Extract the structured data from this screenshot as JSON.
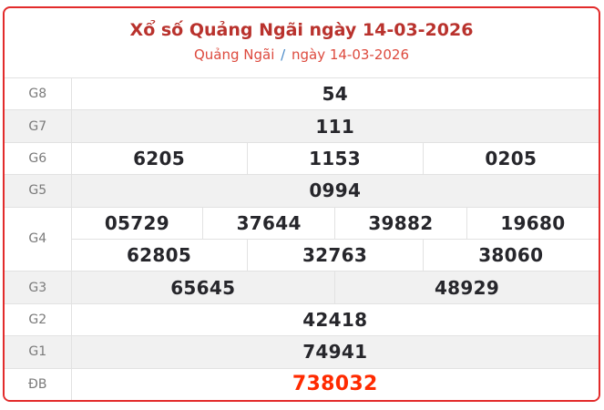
{
  "header": {
    "title": "Xổ số Quảng Ngãi ngày 14-03-2026",
    "breadcrumb": {
      "province": "Quảng Ngãi",
      "separator": "/",
      "date": "ngày 14-03-2026"
    }
  },
  "colors": {
    "border": "#e22b2b",
    "title": "#b9322d",
    "subtitle": "#dd4a3e",
    "slash": "#4788c7",
    "special": "#ff2a00",
    "number": "#26262b",
    "label": "#7a7a7a",
    "stripe": "#f1f1f1",
    "line": "#e2e2e2"
  },
  "results": {
    "rows": [
      {
        "label": "G8",
        "numbers": [
          "54"
        ]
      },
      {
        "label": "G7",
        "numbers": [
          "111"
        ]
      },
      {
        "label": "G6",
        "numbers": [
          "6205",
          "1153",
          "0205"
        ]
      },
      {
        "label": "G5",
        "numbers": [
          "0994"
        ]
      },
      {
        "label": "G4",
        "numbers": [
          "05729",
          "37644",
          "39882",
          "19680",
          "62805",
          "32763",
          "38060"
        ]
      },
      {
        "label": "G3",
        "numbers": [
          "65645",
          "48929"
        ]
      },
      {
        "label": "G2",
        "numbers": [
          "42418"
        ]
      },
      {
        "label": "G1",
        "numbers": [
          "74941"
        ]
      },
      {
        "label": "ĐB",
        "numbers": [
          "738032"
        ],
        "special": true
      }
    ]
  }
}
